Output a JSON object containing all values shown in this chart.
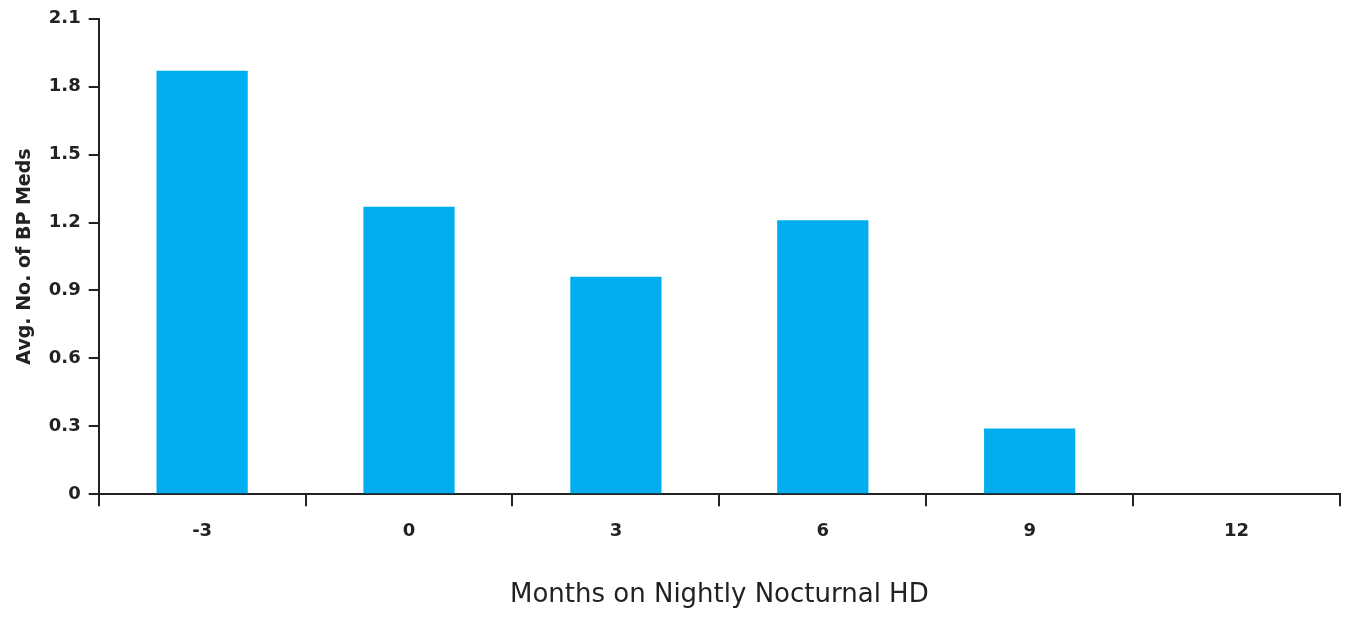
{
  "chart_data": {
    "type": "bar",
    "xlabel": "Months on Nightly Nocturnal HD",
    "ylabel": "Avg. No. of BP Meds",
    "categories": [
      "-3",
      "0",
      "3",
      "6",
      "9",
      "12"
    ],
    "values": [
      1.87,
      1.27,
      0.96,
      1.21,
      0.29,
      0
    ],
    "color": "#00aeef",
    "ylim": [
      0,
      2.1
    ],
    "yticks": [
      0,
      0.3,
      0.6,
      0.9,
      1.2,
      1.5,
      1.8,
      2.1
    ],
    "grid": false,
    "legend": false
  }
}
